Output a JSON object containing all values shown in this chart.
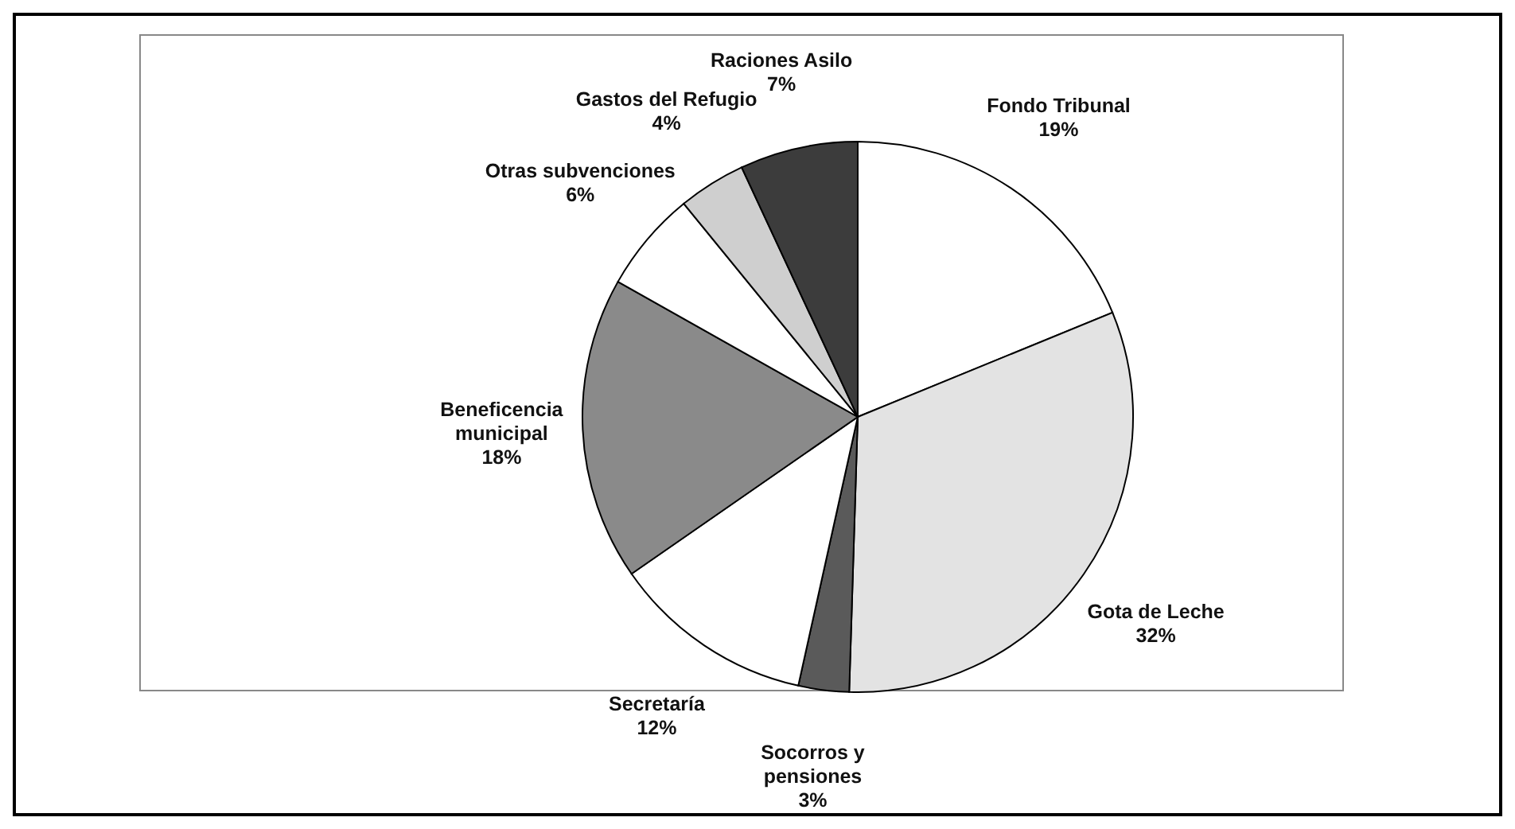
{
  "chart_data": {
    "type": "pie",
    "categories": [
      "Fondo Tribunal",
      "Gota de Leche",
      "Socorros y pensiones",
      "Secretaría",
      "Beneficencia municipal",
      "Otras subvenciones",
      "Gastos del Refugio",
      "Raciones Asilo"
    ],
    "values": [
      19,
      32,
      3,
      12,
      18,
      6,
      4,
      7
    ],
    "colors": [
      "#ffffff",
      "#e3e3e3",
      "#5a5a5a",
      "#ffffff",
      "#8a8a8a",
      "#ffffff",
      "#cfcfcf",
      "#3c3c3c"
    ],
    "value_labels": [
      "19%",
      "32%",
      "3%",
      "12%",
      "18%",
      "6%",
      "4%",
      "7%"
    ]
  }
}
